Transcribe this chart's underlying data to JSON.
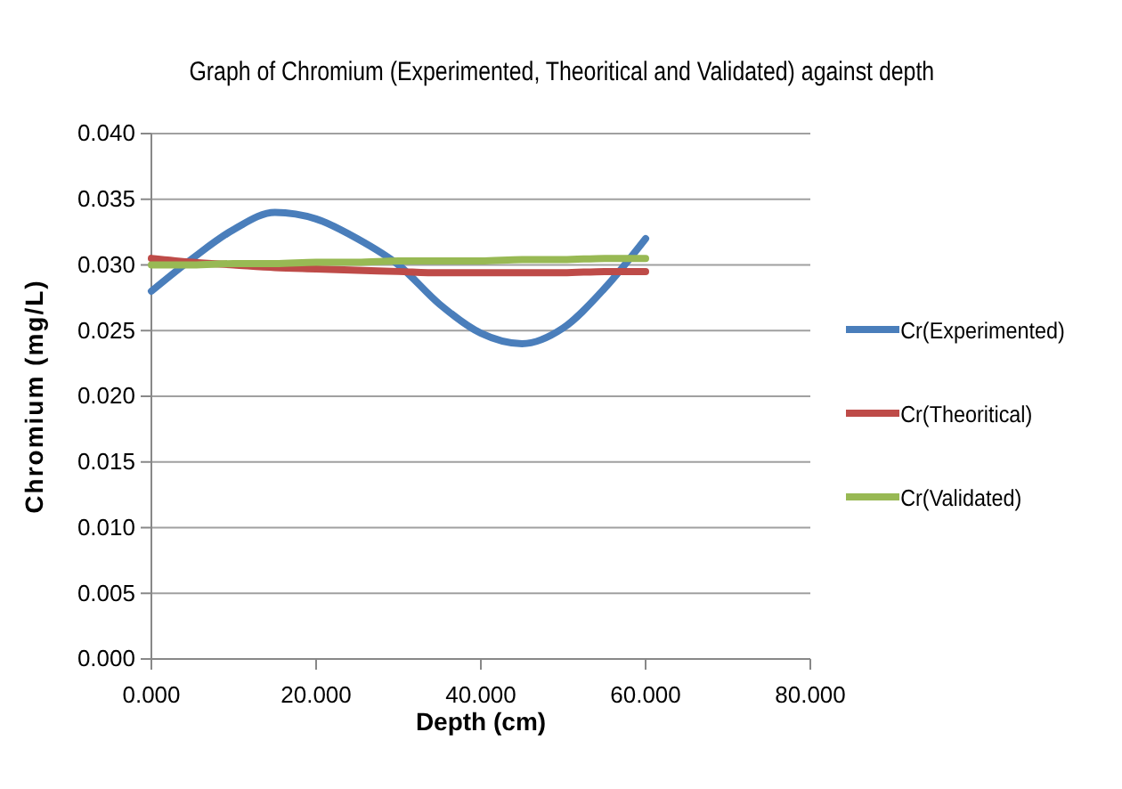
{
  "chart_data": {
    "type": "line",
    "title": "Graph of Chromium (Experimented, Theoritical and Validated) against depth",
    "xlabel": "Depth (cm)",
    "ylabel": "Chromium (mg/L)",
    "x": [
      0,
      5,
      10,
      15,
      20,
      25,
      30,
      35,
      40,
      45,
      50,
      55,
      60
    ],
    "series": [
      {
        "name": "Cr(Experimented)",
        "color": "#4a7ebb",
        "values": [
          0.028,
          0.0305,
          0.0327,
          0.034,
          0.0335,
          0.032,
          0.03,
          0.027,
          0.0248,
          0.024,
          0.0252,
          0.0282,
          0.032
        ]
      },
      {
        "name": "Cr(Theoritical)",
        "color": "#be4b48",
        "values": [
          0.0305,
          0.0302,
          0.03,
          0.0298,
          0.0297,
          0.0296,
          0.0295,
          0.0294,
          0.0294,
          0.0294,
          0.0294,
          0.0295,
          0.0295
        ]
      },
      {
        "name": "Cr(Validated)",
        "color": "#98b954",
        "values": [
          0.03,
          0.03,
          0.0301,
          0.0301,
          0.0302,
          0.0302,
          0.0303,
          0.0303,
          0.0303,
          0.0304,
          0.0304,
          0.0305,
          0.0305
        ]
      }
    ],
    "xlim": [
      0,
      80
    ],
    "xticks": [
      {
        "value": 0,
        "label": "0.000"
      },
      {
        "value": 20,
        "label": "20.000"
      },
      {
        "value": 40,
        "label": "40.000"
      },
      {
        "value": 60,
        "label": "60.000"
      },
      {
        "value": 80,
        "label": "80.000"
      }
    ],
    "ylim": [
      0,
      0.04
    ],
    "yticks": [
      {
        "value": 0,
        "label": "0.000"
      },
      {
        "value": 0.005,
        "label": "0.005"
      },
      {
        "value": 0.01,
        "label": "0.010"
      },
      {
        "value": 0.015,
        "label": "0.015"
      },
      {
        "value": 0.02,
        "label": "0.020"
      },
      {
        "value": 0.025,
        "label": "0.025"
      },
      {
        "value": 0.03,
        "label": "0.030"
      },
      {
        "value": 0.035,
        "label": "0.035"
      },
      {
        "value": 0.04,
        "label": "0.040"
      }
    ],
    "grid": "y",
    "legend": "right",
    "marker": "none",
    "line_style": "solid"
  }
}
